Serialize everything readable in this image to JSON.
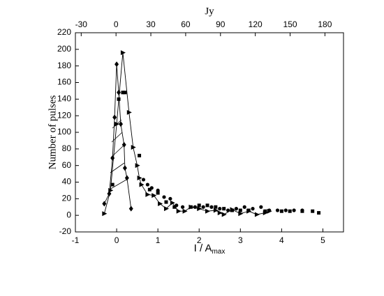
{
  "chart_data": {
    "type": "scatter",
    "xlabel": "I / A",
    "xlabel_subscript": "max",
    "ylabel": "Number of pulses",
    "x2label": "Jy",
    "xlim": [
      -1,
      5.5
    ],
    "xticks": [
      -1,
      0,
      1,
      2,
      3,
      4,
      5
    ],
    "ylim": [
      -20,
      220
    ],
    "yticks": [
      -20,
      0,
      20,
      40,
      60,
      80,
      100,
      120,
      140,
      160,
      180,
      200,
      220
    ],
    "x2lim": [
      -35,
      196
    ],
    "x2ticks": [
      -30,
      0,
      30,
      60,
      90,
      120,
      150,
      180
    ],
    "grid": false,
    "series": [
      {
        "marker": "triangle",
        "line": true,
        "color": "#000000",
        "x": [
          -0.3,
          -0.15,
          0.0,
          0.15,
          0.3,
          0.4,
          0.5,
          0.55,
          0.6,
          0.75,
          0.9,
          1.05,
          1.2,
          1.35,
          1.5,
          1.65,
          1.8,
          2.0,
          2.2,
          2.4,
          2.5,
          2.6,
          2.8,
          3.0,
          3.2,
          3.4,
          3.6,
          3.7
        ],
        "values": [
          2,
          30,
          110,
          196,
          124,
          82,
          60,
          45,
          37,
          25,
          24,
          14,
          8,
          15,
          5,
          5,
          10,
          8,
          5,
          6,
          3,
          1,
          7,
          2,
          5,
          1,
          3,
          5
        ]
      },
      {
        "marker": "diamond",
        "line": true,
        "color": "#000000",
        "x": [
          -0.3,
          -0.18,
          -0.1,
          -0.05,
          0.0,
          0.05,
          0.1,
          0.18,
          0.2,
          0.25,
          0.35
        ],
        "values": [
          14,
          26,
          69,
          118,
          182,
          148,
          110,
          85,
          57,
          45,
          8
        ]
      },
      {
        "marker": "square",
        "line": false,
        "color": "#000000",
        "x": [
          -0.1,
          0.05,
          0.15,
          0.2,
          0.55,
          0.8,
          1.0,
          1.2,
          1.4,
          1.8,
          2.0,
          2.2,
          2.4,
          2.6,
          2.8,
          3.0,
          3.2,
          3.6,
          4.0,
          4.2,
          4.5,
          4.75,
          4.9
        ],
        "values": [
          37,
          140,
          148,
          148,
          72,
          31,
          27,
          16,
          10,
          10,
          12,
          12,
          10,
          8,
          6,
          6,
          6,
          5,
          5,
          5,
          5,
          5,
          3
        ]
      },
      {
        "marker": "circle",
        "line": false,
        "color": "#000000",
        "x": [
          0.65,
          0.75,
          0.85,
          1.0,
          1.15,
          1.3,
          1.45,
          1.6,
          1.9,
          2.1,
          2.3,
          2.5,
          2.7,
          2.9,
          3.1,
          3.3,
          3.5,
          3.7,
          3.9,
          4.1,
          4.3,
          4.5
        ],
        "values": [
          43,
          37,
          33,
          30,
          22,
          20,
          12,
          10,
          10,
          10,
          10,
          8,
          6,
          8,
          10,
          8,
          10,
          6,
          6,
          6,
          6,
          6
        ]
      }
    ]
  }
}
